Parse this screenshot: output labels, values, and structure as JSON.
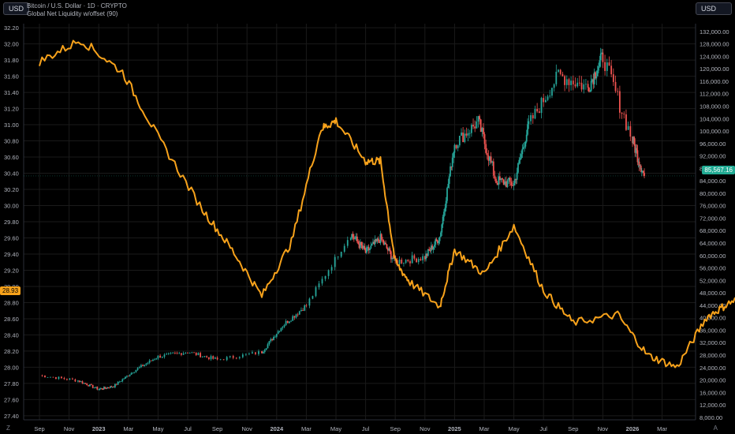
{
  "header": {
    "currency_left": "USD",
    "currency_right": "USD",
    "symbol_title": "Bitcoin / U.S. Dollar · 1D · CRYPTO",
    "indicator_title": "Global Net Liquidity w/offset (90)"
  },
  "tags": {
    "left_value": "28.93",
    "right_value": "85,567.16"
  },
  "footer": {
    "left_icon": "Z",
    "right_icon": "A"
  },
  "colors": {
    "background": "#000000",
    "liquidity": "#f7a21b",
    "btc_up": "#26a69a",
    "btc_down": "#ef5350",
    "grid": "#1a1a1a",
    "axis_text": "#b2b5be"
  },
  "chart_data": {
    "type": "line",
    "x_ticks": [
      "Sep",
      "Nov",
      "2023",
      "Mar",
      "May",
      "Jul",
      "Sep",
      "Nov",
      "2024",
      "Mar",
      "May",
      "Jul",
      "Sep",
      "Nov",
      "2025",
      "Mar",
      "May",
      "Jul",
      "Sep",
      "Nov",
      "2026",
      "Mar"
    ],
    "left_axis": {
      "ticks": [
        "32.20",
        "32.00",
        "31.80",
        "31.60",
        "31.40",
        "31.20",
        "31.00",
        "30.80",
        "30.60",
        "30.40",
        "30.20",
        "30.00",
        "29.80",
        "29.60",
        "29.40",
        "29.20",
        "29.00",
        "28.80",
        "28.60",
        "28.40",
        "28.20",
        "28.00",
        "27.80",
        "27.60",
        "27.40"
      ],
      "ylim": [
        27.35,
        32.25
      ]
    },
    "right_axis": {
      "ticks": [
        "132,000.00",
        "128,000.00",
        "124,000.00",
        "120,000.00",
        "116,000.00",
        "112,000.00",
        "108,000.00",
        "104,000.00",
        "100,000.00",
        "96,000.00",
        "92,000.00",
        "88,000.00",
        "84,000.00",
        "80,000.00",
        "76,000.00",
        "72,000.00",
        "68,000.00",
        "64,000.00",
        "60,000.00",
        "56,000.00",
        "52,000.00",
        "48,000.00",
        "44,000.00",
        "40,000.00",
        "36,000.00",
        "32,000.00",
        "28,000.00",
        "24,000.00",
        "20,000.00",
        "16,000.00",
        "12,000.00",
        "8,000.00"
      ],
      "ylim": [
        7200,
        134500
      ]
    },
    "series": [
      {
        "name": "Global Net Liquidity w/offset (90)",
        "axis": "left",
        "x": [
          0,
          1.4,
          2.8,
          4,
          5.5,
          6.5,
          7.5,
          8.5,
          9.5,
          10,
          11,
          11.5,
          12,
          12.5,
          13.5,
          14,
          15,
          16,
          17,
          18,
          19.5,
          20.5,
          21.5,
          22.5,
          23.2,
          24
        ],
        "y": [
          31.78,
          32.05,
          31.65,
          30.85,
          29.95,
          29.45,
          28.88,
          29.55,
          30.95,
          31.05,
          30.55,
          30.55,
          29.3,
          29.05,
          28.75,
          29.45,
          29.15,
          29.75,
          28.95,
          28.55,
          28.65,
          28.15,
          28.0,
          28.62,
          28.78,
          28.93
        ]
      },
      {
        "name": "Bitcoin / U.S. Dollar",
        "axis": "right",
        "x": [
          0,
          1.3,
          2.0,
          2.5,
          3.2,
          4,
          5,
          6,
          7.5,
          8.2,
          9,
          10.5,
          11,
          11.5,
          12,
          13,
          13.5,
          14,
          14.8,
          15.4,
          16,
          16.5,
          17.5,
          18.5,
          19,
          20,
          20.4
        ],
        "y": [
          21500,
          19800,
          17000,
          18000,
          23000,
          27500,
          29000,
          26500,
          29000,
          37500,
          44000,
          67000,
          61000,
          65500,
          58000,
          59500,
          66000,
          96000,
          103000,
          84000,
          83000,
          102000,
          118000,
          114000,
          124000,
          97000,
          85567
        ]
      }
    ]
  }
}
